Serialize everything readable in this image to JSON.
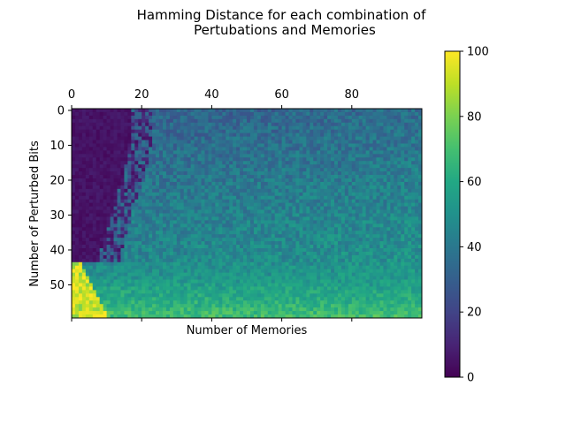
{
  "chart_data": {
    "type": "heatmap",
    "title_lines": [
      "Hamming Distance for each combination of",
      "Pertubations and Memories"
    ],
    "xlabel": "Number of Memories",
    "ylabel": "Number of Perturbed Bits",
    "x_ticks": [
      "0",
      "20",
      "40",
      "60",
      "80"
    ],
    "y_ticks": [
      "0",
      "10",
      "20",
      "30",
      "40",
      "50"
    ],
    "x_range": [
      0,
      99
    ],
    "y_range": [
      0,
      59
    ],
    "n_cols": 100,
    "n_rows": 60,
    "x_axis_position": "top",
    "colormap": "viridis",
    "colorbar": {
      "min": 0,
      "max": 100,
      "ticks": [
        "0",
        "20",
        "40",
        "60",
        "80",
        "100"
      ]
    },
    "value_pattern": "Values near 0 for few memories and few perturbed bits; rise toward ~35-55 for most cells; reach ~60-75 near bottom rows and ~100 at bottom-left corner (many perturbed bits, few memories)."
  }
}
